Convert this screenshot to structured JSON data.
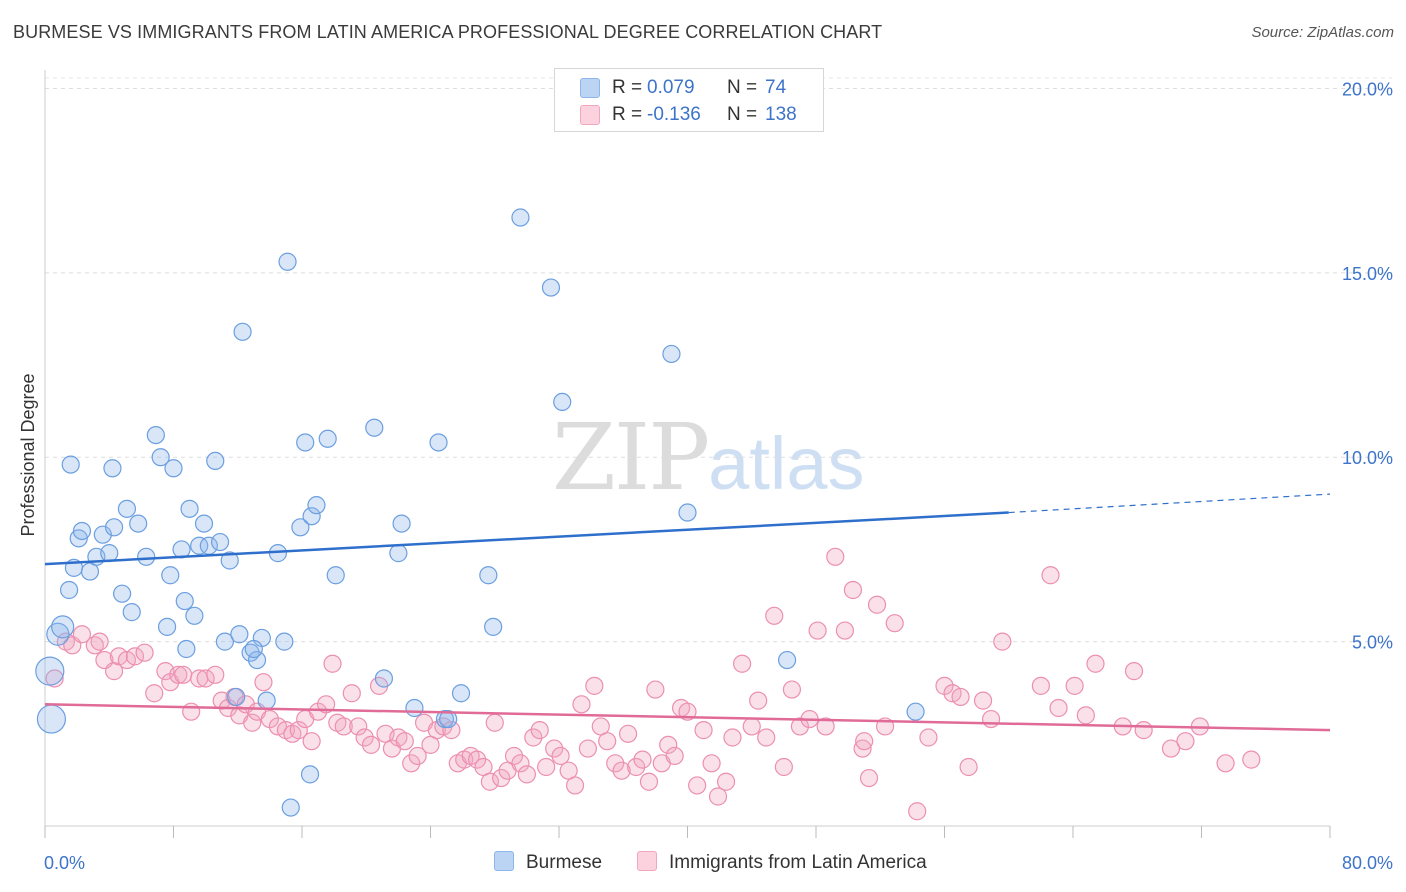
{
  "header": {
    "title": "BURMESE VS IMMIGRANTS FROM LATIN AMERICA PROFESSIONAL DEGREE CORRELATION CHART",
    "source": "Source: ZipAtlas.com"
  },
  "watermark": {
    "zip": "ZIP",
    "atlas": "atlas"
  },
  "legend": {
    "rows": [
      {
        "r_label": "R =",
        "r_value": "0.079",
        "n_label": "N =",
        "n_value": "74",
        "color": "#8fb6ea"
      },
      {
        "r_label": "R =",
        "r_value": "-0.136",
        "n_label": "N =",
        "n_value": "138",
        "color": "#f2a5bf"
      }
    ]
  },
  "bottom_legend": [
    "Burmese",
    "Immigrants from Latin America"
  ],
  "chart_data": {
    "type": "scatter",
    "title": "BURMESE VS IMMIGRANTS FROM LATIN AMERICA PROFESSIONAL DEGREE CORRELATION CHART",
    "xlabel": "",
    "ylabel": "Professional Degree",
    "xlim": [
      0,
      80
    ],
    "ylim": [
      0,
      20.5
    ],
    "x_tick_labels": [
      "0.0%",
      "80.0%"
    ],
    "y_ticks": [
      5,
      10,
      15,
      20
    ],
    "y_tick_labels": [
      "5.0%",
      "10.0%",
      "15.0%",
      "20.0%"
    ],
    "grid": "horizontal dashed",
    "legend_position": "top-center",
    "colors": {
      "burmese": "#6b9fe0",
      "latin": "#ec8fb0",
      "burmese_line": "#2f6fcc",
      "latin_line": "#e06b97"
    },
    "series": [
      {
        "name": "Burmese",
        "trend": {
          "x0": 0,
          "y0": 7.1,
          "x1": 60,
          "y1": 8.5,
          "x_dash_end": 80,
          "y_dash_end": 9.0
        },
        "points": [
          [
            0.3,
            4.2
          ],
          [
            0.4,
            2.9
          ],
          [
            0.8,
            5.2
          ],
          [
            1.1,
            5.4
          ],
          [
            1.5,
            6.4
          ],
          [
            1.8,
            7.0
          ],
          [
            2.1,
            7.8
          ],
          [
            2.3,
            8.0
          ],
          [
            2.8,
            6.9
          ],
          [
            3.2,
            7.3
          ],
          [
            3.6,
            7.9
          ],
          [
            4.0,
            7.4
          ],
          [
            4.3,
            8.1
          ],
          [
            4.8,
            6.3
          ],
          [
            5.1,
            8.6
          ],
          [
            5.4,
            5.8
          ],
          [
            5.8,
            8.2
          ],
          [
            6.3,
            7.3
          ],
          [
            6.9,
            10.6
          ],
          [
            7.2,
            10.0
          ],
          [
            7.6,
            5.4
          ],
          [
            7.8,
            6.8
          ],
          [
            8.0,
            9.7
          ],
          [
            8.5,
            7.5
          ],
          [
            8.7,
            6.1
          ],
          [
            9.0,
            8.6
          ],
          [
            9.3,
            5.7
          ],
          [
            9.6,
            7.6
          ],
          [
            9.9,
            8.2
          ],
          [
            10.2,
            7.6
          ],
          [
            10.6,
            9.9
          ],
          [
            10.9,
            7.7
          ],
          [
            11.2,
            5.0
          ],
          [
            11.5,
            7.2
          ],
          [
            11.9,
            3.5
          ],
          [
            12.1,
            5.2
          ],
          [
            12.3,
            13.4
          ],
          [
            12.8,
            4.7
          ],
          [
            13.2,
            4.5
          ],
          [
            13.5,
            5.1
          ],
          [
            13.8,
            3.4
          ],
          [
            14.5,
            7.4
          ],
          [
            14.9,
            5.0
          ],
          [
            15.1,
            15.3
          ],
          [
            15.3,
            0.5
          ],
          [
            15.9,
            8.1
          ],
          [
            16.2,
            10.4
          ],
          [
            16.6,
            8.4
          ],
          [
            16.9,
            8.7
          ],
          [
            17.6,
            10.5
          ],
          [
            18.1,
            6.8
          ],
          [
            20.5,
            10.8
          ],
          [
            21.1,
            4.0
          ],
          [
            22.0,
            7.4
          ],
          [
            22.2,
            8.2
          ],
          [
            23.0,
            3.2
          ],
          [
            24.5,
            10.4
          ],
          [
            24.9,
            2.9
          ],
          [
            25.1,
            2.9
          ],
          [
            25.9,
            3.6
          ],
          [
            27.6,
            6.8
          ],
          [
            27.9,
            5.4
          ],
          [
            29.6,
            16.5
          ],
          [
            31.5,
            14.6
          ],
          [
            32.2,
            11.5
          ],
          [
            39.0,
            12.8
          ],
          [
            40.0,
            8.5
          ],
          [
            46.2,
            4.5
          ],
          [
            54.2,
            3.1
          ],
          [
            16.5,
            1.4
          ],
          [
            8.8,
            4.8
          ],
          [
            13.0,
            4.8
          ],
          [
            1.6,
            9.8
          ],
          [
            4.2,
            9.7
          ]
        ]
      },
      {
        "name": "Immigrants from Latin America",
        "trend": {
          "x0": 0,
          "y0": 3.3,
          "x1": 80,
          "y1": 2.6
        },
        "points": [
          [
            0.6,
            4.0
          ],
          [
            1.3,
            5.0
          ],
          [
            1.7,
            4.9
          ],
          [
            2.3,
            5.2
          ],
          [
            3.1,
            4.9
          ],
          [
            3.4,
            5.0
          ],
          [
            3.7,
            4.5
          ],
          [
            4.3,
            4.2
          ],
          [
            4.6,
            4.6
          ],
          [
            5.1,
            4.5
          ],
          [
            5.6,
            4.6
          ],
          [
            6.2,
            4.7
          ],
          [
            6.8,
            3.6
          ],
          [
            7.5,
            4.2
          ],
          [
            7.8,
            3.9
          ],
          [
            8.3,
            4.1
          ],
          [
            8.6,
            4.1
          ],
          [
            9.1,
            3.1
          ],
          [
            9.6,
            4.0
          ],
          [
            10.0,
            4.0
          ],
          [
            10.6,
            4.1
          ],
          [
            11.0,
            3.4
          ],
          [
            11.4,
            3.2
          ],
          [
            11.8,
            3.5
          ],
          [
            12.1,
            3.0
          ],
          [
            12.5,
            3.3
          ],
          [
            12.9,
            2.8
          ],
          [
            13.2,
            3.1
          ],
          [
            13.6,
            3.9
          ],
          [
            14.0,
            2.9
          ],
          [
            14.5,
            2.7
          ],
          [
            15.0,
            2.6
          ],
          [
            15.4,
            2.5
          ],
          [
            15.8,
            2.6
          ],
          [
            16.2,
            2.9
          ],
          [
            16.6,
            2.3
          ],
          [
            17.0,
            3.1
          ],
          [
            17.5,
            3.3
          ],
          [
            17.9,
            4.4
          ],
          [
            18.2,
            2.8
          ],
          [
            18.6,
            2.7
          ],
          [
            19.1,
            3.6
          ],
          [
            19.5,
            2.7
          ],
          [
            19.9,
            2.4
          ],
          [
            20.3,
            2.2
          ],
          [
            20.8,
            3.8
          ],
          [
            21.2,
            2.5
          ],
          [
            21.6,
            2.1
          ],
          [
            22.0,
            2.4
          ],
          [
            22.4,
            2.3
          ],
          [
            22.8,
            1.7
          ],
          [
            23.2,
            1.9
          ],
          [
            23.6,
            2.8
          ],
          [
            24.0,
            2.2
          ],
          [
            24.4,
            2.6
          ],
          [
            24.8,
            2.7
          ],
          [
            25.3,
            2.6
          ],
          [
            25.7,
            1.7
          ],
          [
            26.1,
            1.8
          ],
          [
            26.5,
            1.9
          ],
          [
            26.9,
            1.8
          ],
          [
            27.3,
            1.6
          ],
          [
            27.7,
            1.2
          ],
          [
            28.0,
            2.8
          ],
          [
            28.4,
            1.3
          ],
          [
            28.8,
            1.5
          ],
          [
            29.2,
            1.9
          ],
          [
            29.6,
            1.7
          ],
          [
            30.0,
            1.4
          ],
          [
            30.4,
            2.4
          ],
          [
            30.8,
            2.6
          ],
          [
            31.2,
            1.6
          ],
          [
            31.7,
            2.1
          ],
          [
            32.1,
            1.9
          ],
          [
            32.6,
            1.5
          ],
          [
            33.0,
            1.1
          ],
          [
            33.4,
            3.3
          ],
          [
            33.8,
            2.1
          ],
          [
            34.2,
            3.8
          ],
          [
            34.6,
            2.7
          ],
          [
            35.0,
            2.3
          ],
          [
            35.5,
            1.7
          ],
          [
            35.9,
            1.5
          ],
          [
            36.3,
            2.5
          ],
          [
            36.8,
            1.6
          ],
          [
            37.2,
            1.8
          ],
          [
            37.6,
            1.2
          ],
          [
            38.0,
            3.7
          ],
          [
            38.4,
            1.7
          ],
          [
            38.8,
            2.2
          ],
          [
            39.2,
            1.9
          ],
          [
            39.6,
            3.2
          ],
          [
            40.0,
            3.1
          ],
          [
            40.6,
            1.1
          ],
          [
            41.0,
            2.6
          ],
          [
            41.5,
            1.7
          ],
          [
            41.9,
            0.8
          ],
          [
            42.4,
            1.2
          ],
          [
            42.8,
            2.4
          ],
          [
            43.4,
            4.4
          ],
          [
            44.0,
            2.7
          ],
          [
            44.4,
            3.4
          ],
          [
            44.9,
            2.4
          ],
          [
            45.4,
            5.7
          ],
          [
            46.0,
            1.6
          ],
          [
            46.5,
            3.7
          ],
          [
            47.0,
            2.7
          ],
          [
            47.6,
            2.9
          ],
          [
            48.1,
            5.3
          ],
          [
            48.6,
            2.7
          ],
          [
            49.2,
            7.3
          ],
          [
            49.8,
            5.3
          ],
          [
            50.3,
            6.4
          ],
          [
            50.9,
            2.1
          ],
          [
            51.3,
            1.3
          ],
          [
            51.8,
            6.0
          ],
          [
            52.3,
            2.7
          ],
          [
            52.9,
            5.5
          ],
          [
            54.3,
            0.4
          ],
          [
            55.0,
            2.4
          ],
          [
            56.0,
            3.8
          ],
          [
            56.5,
            3.6
          ],
          [
            57.0,
            3.5
          ],
          [
            57.5,
            1.6
          ],
          [
            58.4,
            3.4
          ],
          [
            58.9,
            2.9
          ],
          [
            59.6,
            5.0
          ],
          [
            62.0,
            3.8
          ],
          [
            63.1,
            3.2
          ],
          [
            64.1,
            3.8
          ],
          [
            64.8,
            3.0
          ],
          [
            65.4,
            4.4
          ],
          [
            67.1,
            2.7
          ],
          [
            67.8,
            4.2
          ],
          [
            68.4,
            2.6
          ],
          [
            70.1,
            2.1
          ],
          [
            71.0,
            2.3
          ],
          [
            71.9,
            2.7
          ],
          [
            73.5,
            1.7
          ],
          [
            75.1,
            1.8
          ],
          [
            62.6,
            6.8
          ],
          [
            51.0,
            2.3
          ]
        ]
      }
    ]
  }
}
